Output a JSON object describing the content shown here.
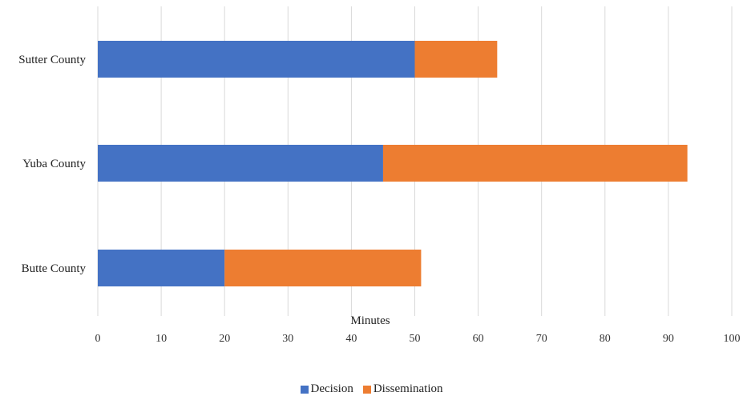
{
  "chart_data": {
    "type": "bar",
    "orientation": "horizontal",
    "stacked": true,
    "title": "",
    "xlabel": "Minutes",
    "ylabel": "",
    "xlim": [
      0,
      100
    ],
    "xticks": [
      0,
      10,
      20,
      30,
      40,
      50,
      60,
      70,
      80,
      90,
      100
    ],
    "categories": [
      "Sutter County",
      "Yuba County",
      "Butte County"
    ],
    "series": [
      {
        "name": "Decision",
        "color": "#4472C4",
        "values": [
          50,
          45,
          20
        ]
      },
      {
        "name": "Dissemination",
        "color": "#ED7D31",
        "values": [
          13,
          48,
          31
        ]
      }
    ],
    "grid": "vertical",
    "legend_position": "bottom"
  }
}
